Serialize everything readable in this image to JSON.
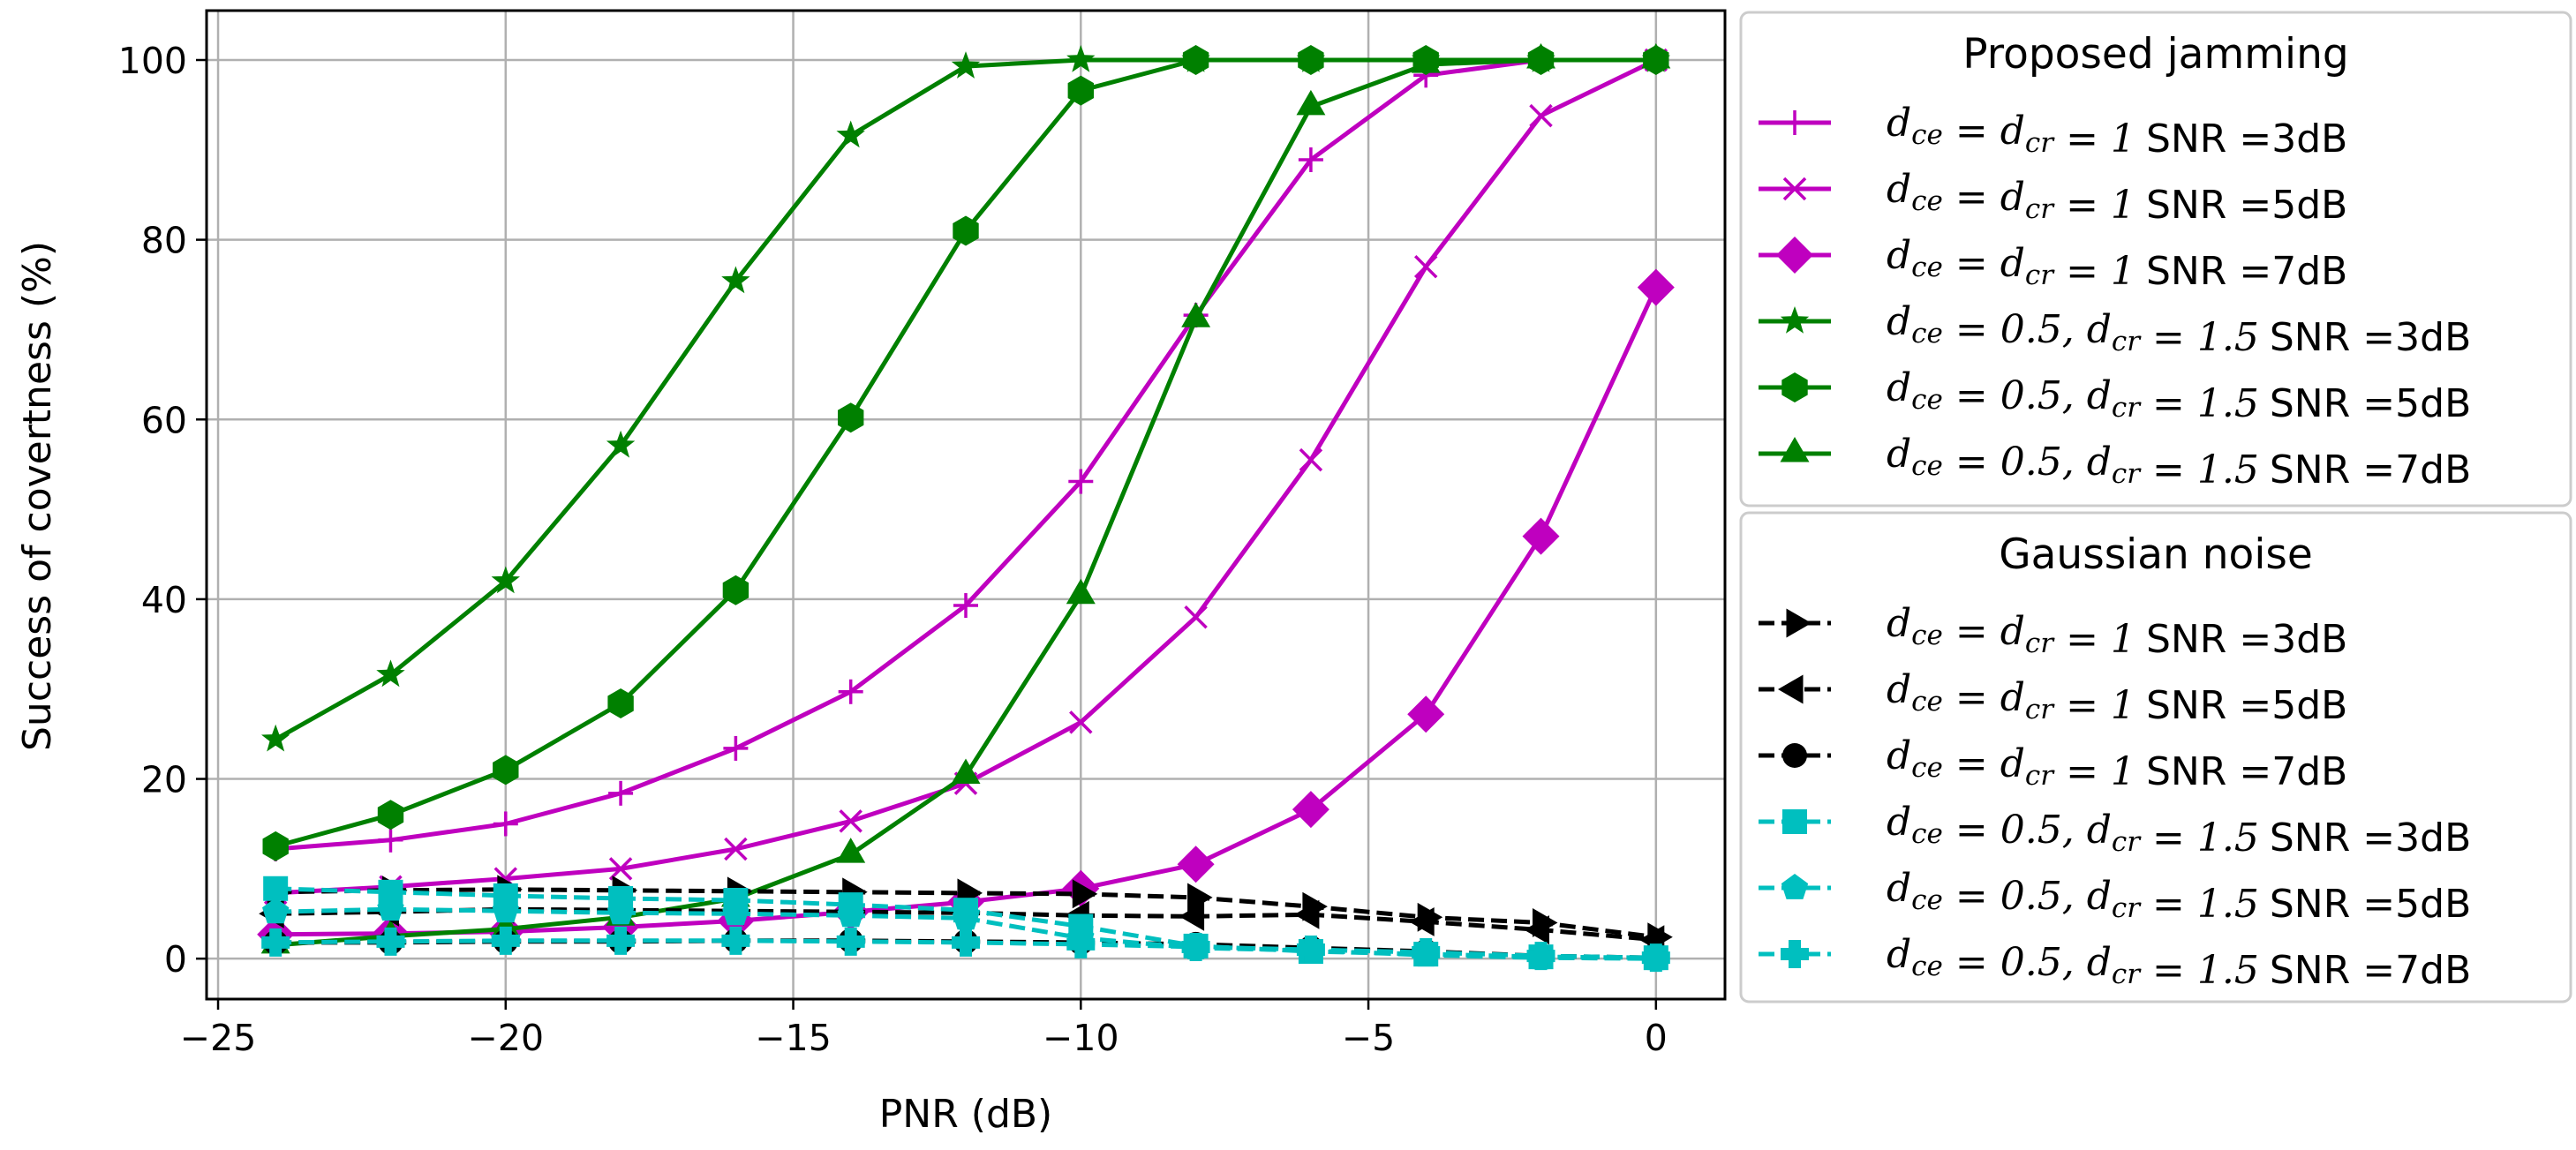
{
  "chart_data": {
    "type": "line",
    "title": "",
    "xlabel": "PNR (dB)",
    "ylabel": "Success of covertness (%)",
    "xlim": [
      -25.2,
      1.2
    ],
    "ylim": [
      -4.5,
      105.5
    ],
    "grid": true,
    "x": [
      -24,
      -22,
      -20,
      -18,
      -16,
      -14,
      -12,
      -10,
      -8,
      -6,
      -4,
      -2,
      0
    ],
    "x_ticks": [
      -25,
      -20,
      -15,
      -10,
      -5,
      0
    ],
    "x_tick_labels": [
      "−25",
      "−20",
      "−15",
      "−10",
      "−5",
      "0"
    ],
    "y_ticks": [
      0,
      20,
      40,
      60,
      80,
      100
    ],
    "y_tick_labels": [
      "0",
      "20",
      "40",
      "60",
      "80",
      "100"
    ],
    "colors": {
      "magenta": "#bf00bf",
      "green": "#008000",
      "black": "#000000",
      "cyan": "#00bfbf",
      "grid": "#b0b0b0"
    },
    "legend_groups": [
      {
        "title": "Proposed jamming",
        "placement": "upper-right-outside"
      },
      {
        "title": "Gaussian noise",
        "placement": "lower-right-outside"
      }
    ],
    "series": [
      {
        "name": "d_ce = d_cr = 1 SNR =3dB",
        "d": "d_ce = d_cr = 1",
        "snr": "SNR =3dB",
        "group": 0,
        "color": "#bf00bf",
        "marker": "plus",
        "dash": "solid",
        "values": [
          12.2,
          13.2,
          15.0,
          18.4,
          23.4,
          29.7,
          39.3,
          53.1,
          71.6,
          88.9,
          98.3,
          100,
          100
        ]
      },
      {
        "name": "d_ce = d_cr = 1 SNR =5dB",
        "d": "d_ce = d_cr = 1",
        "snr": "SNR =5dB",
        "group": 0,
        "color": "#bf00bf",
        "marker": "x",
        "dash": "solid",
        "values": [
          7.3,
          8.0,
          8.9,
          10.0,
          12.2,
          15.3,
          19.5,
          26.3,
          38.0,
          55.5,
          77.0,
          93.8,
          100
        ]
      },
      {
        "name": "d_ce = d_cr = 1 SNR =7dB",
        "d": "d_ce = d_cr = 1",
        "snr": "SNR =7dB",
        "group": 0,
        "color": "#bf00bf",
        "marker": "diamond",
        "dash": "solid",
        "values": [
          2.7,
          2.8,
          3.0,
          3.5,
          4.2,
          5.2,
          6.3,
          7.8,
          10.5,
          16.6,
          27.2,
          47.0,
          74.7
        ]
      },
      {
        "name": "d_ce = 0.5, d_cr = 1.5 SNR =3dB",
        "d": "d_ce = 0.5, d_cr = 1.5",
        "snr": "SNR =3dB",
        "group": 0,
        "color": "#008000",
        "marker": "star",
        "dash": "solid",
        "values": [
          24.4,
          31.6,
          42.0,
          57.1,
          75.4,
          91.6,
          99.3,
          100,
          100,
          100,
          100,
          100,
          100
        ]
      },
      {
        "name": "d_ce = 0.5, d_cr = 1.5 SNR =5dB",
        "d": "d_ce = 0.5, d_cr = 1.5",
        "snr": "SNR =5dB",
        "group": 0,
        "color": "#008000",
        "marker": "hexagon",
        "dash": "solid",
        "values": [
          12.5,
          16.0,
          21.0,
          28.4,
          41.0,
          60.2,
          81.0,
          96.6,
          100,
          100,
          100,
          100,
          100
        ]
      },
      {
        "name": "d_ce = 0.5, d_cr = 1.5 SNR =7dB",
        "d": "d_ce = 0.5, d_cr = 1.5",
        "snr": "SNR =7dB",
        "group": 0,
        "color": "#008000",
        "marker": "triangle-up",
        "dash": "solid",
        "values": [
          1.5,
          2.5,
          3.3,
          4.6,
          6.7,
          11.6,
          20.4,
          40.4,
          71.2,
          94.8,
          99.5,
          100,
          100
        ]
      },
      {
        "name": "d_ce = d_cr = 1 SNR =3dB",
        "d": "d_ce = d_cr = 1",
        "snr": "SNR =3dB",
        "group": 1,
        "color": "#000000",
        "marker": "triangle-right",
        "dash": "dashed",
        "values": [
          7.4,
          7.6,
          7.7,
          7.6,
          7.5,
          7.4,
          7.3,
          7.2,
          6.8,
          5.8,
          4.6,
          4.0,
          2.4
        ]
      },
      {
        "name": "d_ce = d_cr = 1 SNR =5dB",
        "d": "d_ce = d_cr = 1",
        "snr": "SNR =5dB",
        "group": 1,
        "color": "#000000",
        "marker": "triangle-left",
        "dash": "dashed",
        "values": [
          5.0,
          5.2,
          5.5,
          5.4,
          5.3,
          5.2,
          5.1,
          4.8,
          4.7,
          4.9,
          4.1,
          3.2,
          2.1
        ]
      },
      {
        "name": "d_ce = d_cr = 1 SNR =7dB",
        "d": "d_ce = d_cr = 1",
        "snr": "SNR =7dB",
        "group": 1,
        "color": "#000000",
        "marker": "circle",
        "dash": "dashed",
        "values": [
          1.8,
          1.8,
          1.9,
          1.9,
          2.0,
          2.0,
          1.9,
          1.8,
          1.6,
          1.2,
          0.8,
          0.3,
          0.1
        ]
      },
      {
        "name": "d_ce = 0.5, d_cr = 1.5 SNR =3dB",
        "d": "d_ce = 0.5, d_cr = 1.5",
        "snr": "SNR =3dB",
        "group": 1,
        "color": "#00bfbf",
        "marker": "square",
        "dash": "dashed",
        "values": [
          7.8,
          7.4,
          7.0,
          6.7,
          6.5,
          6.0,
          5.4,
          3.6,
          1.4,
          0.8,
          0.5,
          0.2,
          0.1
        ]
      },
      {
        "name": "d_ce = 0.5, d_cr = 1.5 SNR =5dB",
        "d": "d_ce = 0.5, d_cr = 1.5",
        "snr": "SNR =5dB",
        "group": 1,
        "color": "#00bfbf",
        "marker": "pentagon",
        "dash": "dashed",
        "values": [
          5.2,
          5.5,
          5.3,
          5.1,
          5.0,
          4.8,
          4.5,
          2.3,
          1.2,
          0.9,
          0.4,
          0.1,
          0.0
        ]
      },
      {
        "name": "d_ce = 0.5, d_cr = 1.5 SNR =7dB",
        "d": "d_ce = 0.5, d_cr = 1.5",
        "snr": "SNR =7dB",
        "group": 1,
        "color": "#00bfbf",
        "marker": "plus-filled",
        "dash": "dashed",
        "values": [
          1.8,
          1.9,
          2.0,
          2.0,
          2.0,
          1.9,
          1.8,
          1.6,
          1.3,
          1.0,
          0.7,
          0.3,
          0.1
        ]
      }
    ]
  }
}
